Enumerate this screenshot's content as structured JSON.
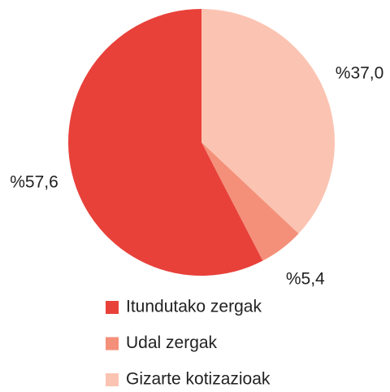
{
  "chart_data": {
    "type": "pie",
    "categories": [
      "Itundutako zergak",
      "Udal zergak",
      "Gizarte kotizazioak"
    ],
    "values": [
      57.6,
      5.4,
      37.0
    ],
    "value_labels": [
      "%57,6",
      "%5,4",
      "%37,0"
    ],
    "colors": [
      "#e8413a",
      "#f4907a",
      "#fbc4b2"
    ]
  }
}
